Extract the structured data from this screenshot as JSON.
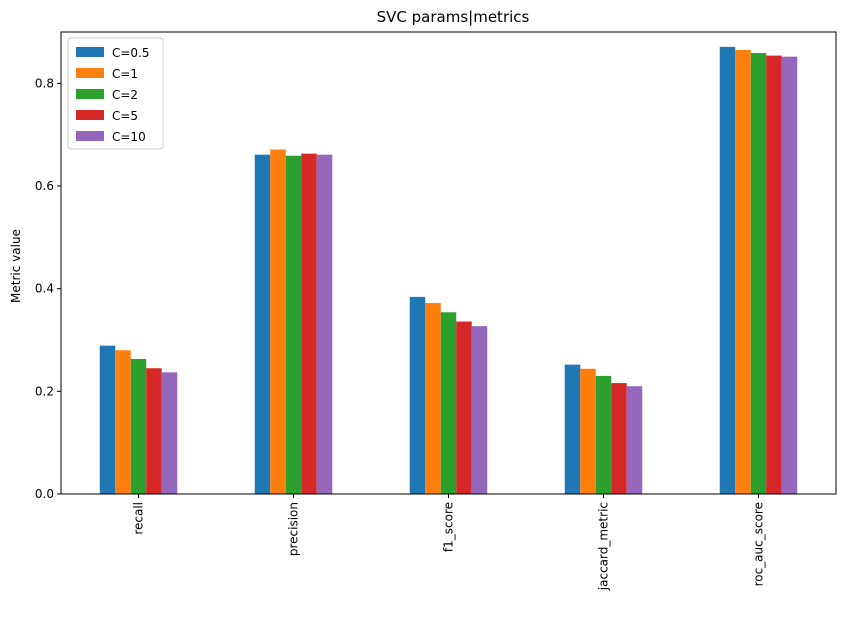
{
  "chart_data": {
    "type": "bar",
    "title": "SVC params|metrics",
    "xlabel": "",
    "ylabel": "Metric value",
    "categories": [
      "recall",
      "precision",
      "f1_score",
      "jaccard_metric",
      "roc_auc_score"
    ],
    "ylim": [
      0,
      0.9
    ],
    "yticks": [
      0.0,
      0.2,
      0.4,
      0.6,
      0.8
    ],
    "ytick_labels": [
      "0.0",
      "0.2",
      "0.4",
      "0.6",
      "0.8"
    ],
    "grid": false,
    "legend_position": "top-left",
    "series": [
      {
        "name": "C=0.5",
        "color": "#1f77b4",
        "values": [
          0.289,
          0.661,
          0.384,
          0.252,
          0.871
        ]
      },
      {
        "name": "C=1",
        "color": "#ff7f0e",
        "values": [
          0.28,
          0.671,
          0.372,
          0.244,
          0.865
        ]
      },
      {
        "name": "C=2",
        "color": "#2ca02c",
        "values": [
          0.263,
          0.659,
          0.354,
          0.23,
          0.859
        ]
      },
      {
        "name": "C=5",
        "color": "#d62728",
        "values": [
          0.245,
          0.663,
          0.336,
          0.216,
          0.854
        ]
      },
      {
        "name": "C=10",
        "color": "#9467bd",
        "values": [
          0.237,
          0.661,
          0.327,
          0.21,
          0.852
        ]
      }
    ]
  }
}
